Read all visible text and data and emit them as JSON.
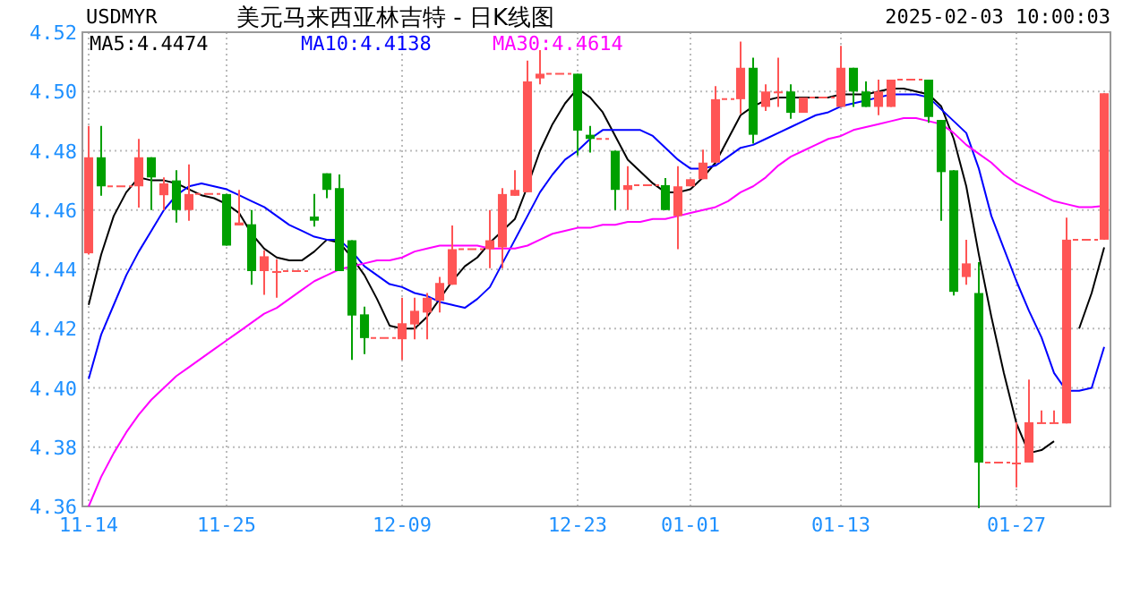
{
  "chart_data": {
    "type": "candlestick",
    "title": "美元马来西亚林吉特 - 日K线图",
    "subtitle": "USDMYR",
    "annotations": [
      "2025-02-03 10:00:03"
    ],
    "categories": [
      "11-14",
      null,
      null,
      null,
      null,
      null,
      null,
      null,
      null,
      null,
      null,
      "11-25",
      null,
      null,
      null,
      null,
      null,
      null,
      null,
      null,
      null,
      null,
      null,
      null,
      null,
      "12-09",
      null,
      null,
      null,
      null,
      null,
      null,
      null,
      null,
      null,
      null,
      null,
      null,
      null,
      "12-23",
      null,
      null,
      null,
      null,
      null,
      null,
      null,
      null,
      "01-01",
      null,
      null,
      null,
      null,
      null,
      null,
      null,
      null,
      null,
      null,
      null,
      "01-13",
      null,
      null,
      null,
      null,
      null,
      null,
      null,
      null,
      null,
      null,
      null,
      null,
      null,
      "01-27",
      null,
      null,
      null,
      null,
      null,
      null,
      null
    ],
    "ohlc": [
      [
        4.4454,
        4.4884,
        4.445,
        4.4778
      ],
      [
        4.4778,
        4.4884,
        4.4648,
        4.468
      ],
      [
        4.468,
        4.468,
        4.468,
        4.468
      ],
      [
        4.468,
        4.468,
        4.468,
        4.468
      ],
      [
        4.468,
        4.484,
        4.4608,
        4.4778
      ],
      [
        4.4778,
        4.4778,
        4.46,
        4.471
      ],
      [
        4.465,
        4.471,
        4.46,
        4.469
      ],
      [
        4.47,
        4.4734,
        4.4558,
        4.46
      ],
      [
        4.46,
        4.4754,
        4.4564,
        4.4654
      ],
      [
        4.4654,
        4.4654,
        4.4654,
        4.4654
      ],
      [
        4.4654,
        4.4654,
        4.4654,
        4.4654
      ],
      [
        4.4654,
        4.4654,
        4.448,
        4.448
      ],
      [
        4.4548,
        4.4668,
        4.4548,
        4.4558
      ],
      [
        4.4552,
        4.46,
        4.4348,
        4.4394
      ],
      [
        4.4394,
        4.4464,
        4.4314,
        4.4444
      ],
      [
        4.4394,
        4.4434,
        4.4304,
        4.4394
      ],
      [
        4.4394,
        4.4394,
        4.4394,
        4.4394
      ],
      [
        4.4394,
        4.4394,
        4.4394,
        4.4394
      ],
      [
        4.4578,
        4.4654,
        4.4544,
        4.4564
      ],
      [
        4.4724,
        4.4724,
        4.464,
        4.4668
      ],
      [
        4.4674,
        4.472,
        4.4394,
        4.4394
      ],
      [
        4.4498,
        4.4498,
        4.4094,
        4.4244
      ],
      [
        4.4248,
        4.4274,
        4.4114,
        4.4168
      ],
      [
        4.4168,
        4.4168,
        4.4168,
        4.4168
      ],
      [
        4.4168,
        4.4168,
        4.4168,
        4.4168
      ],
      [
        4.4164,
        4.4304,
        4.4094,
        4.4218
      ],
      [
        4.4214,
        4.4304,
        4.4164,
        4.426
      ],
      [
        4.4254,
        4.432,
        4.4164,
        4.4304
      ],
      [
        4.4294,
        4.4374,
        4.4254,
        4.4354
      ],
      [
        4.4348,
        4.4548,
        4.4348,
        4.4468
      ],
      [
        4.4468,
        4.4468,
        4.4468,
        4.4468
      ],
      [
        4.4468,
        4.4468,
        4.4468,
        4.4468
      ],
      [
        4.4468,
        4.46,
        4.4404,
        4.4498
      ],
      [
        4.4474,
        4.4674,
        4.4404,
        4.4654
      ],
      [
        4.4648,
        4.4734,
        4.4648,
        4.4668
      ],
      [
        4.466,
        4.5104,
        4.466,
        4.5034
      ],
      [
        4.5044,
        4.514,
        4.5024,
        4.506
      ],
      [
        4.506,
        4.506,
        4.506,
        4.506
      ],
      [
        4.506,
        4.506,
        4.506,
        4.506
      ],
      [
        4.506,
        4.506,
        4.4784,
        4.4868
      ],
      [
        4.4854,
        4.4884,
        4.4794,
        4.484
      ],
      [
        4.484,
        4.484,
        4.484,
        4.484
      ],
      [
        4.48,
        4.48,
        4.46,
        4.4668
      ],
      [
        4.4668,
        4.4748,
        4.46,
        4.4684
      ],
      [
        4.4684,
        4.4684,
        4.4684,
        4.4684
      ],
      [
        4.4684,
        4.4684,
        4.4684,
        4.4684
      ],
      [
        4.4684,
        4.4708,
        4.46,
        4.46
      ],
      [
        4.458,
        4.4748,
        4.4468,
        4.468
      ],
      [
        4.468,
        4.4704,
        4.468,
        4.4704
      ],
      [
        4.4704,
        4.4804,
        4.4704,
        4.476
      ],
      [
        4.476,
        4.5018,
        4.476,
        4.4974
      ],
      [
        4.4974,
        4.4974,
        4.4974,
        4.4974
      ],
      [
        4.4974,
        4.5168,
        4.4924,
        4.508
      ],
      [
        4.508,
        4.5114,
        4.4824,
        4.4854
      ],
      [
        4.4948,
        4.5024,
        4.4934,
        4.5
      ],
      [
        4.5,
        4.5114,
        4.4948,
        4.5
      ],
      [
        4.5,
        4.5024,
        4.4908,
        4.4928
      ],
      [
        4.4928,
        4.498,
        4.4928,
        4.498
      ],
      [
        4.498,
        4.498,
        4.498,
        4.498
      ],
      [
        4.498,
        4.498,
        4.498,
        4.498
      ],
      [
        4.4948,
        4.5154,
        4.4948,
        4.508
      ],
      [
        4.508,
        4.508,
        4.4948,
        4.5
      ],
      [
        4.5,
        4.5034,
        4.4948,
        4.4948
      ],
      [
        4.4948,
        4.504,
        4.492,
        4.5
      ],
      [
        4.4948,
        4.504,
        4.4948,
        4.504
      ],
      [
        4.504,
        4.504,
        4.504,
        4.504
      ],
      [
        4.504,
        4.504,
        4.504,
        4.504
      ],
      [
        4.504,
        4.504,
        4.4894,
        4.4914
      ],
      [
        4.4904,
        4.4904,
        4.4564,
        4.4728
      ],
      [
        4.4734,
        4.4734,
        4.4312,
        4.4324
      ],
      [
        4.4374,
        4.45,
        4.4348,
        4.442
      ],
      [
        4.432,
        4.4424,
        4.3594,
        4.3748
      ],
      [
        4.3748,
        4.3748,
        4.3748,
        4.3748
      ],
      [
        4.3748,
        4.3748,
        4.3748,
        4.3748
      ],
      [
        4.3748,
        4.3884,
        4.3664,
        4.3748
      ],
      [
        4.3748,
        4.4028,
        4.3748,
        4.3884
      ],
      [
        4.3884,
        4.3924,
        4.3884,
        4.3884
      ],
      [
        4.3884,
        4.3924,
        4.3884,
        4.3884
      ],
      [
        4.388,
        4.4574,
        4.388,
        4.45
      ],
      [
        4.45,
        4.45,
        4.45,
        4.45
      ],
      [
        4.45,
        4.45,
        4.45,
        4.45
      ],
      [
        4.45,
        4.4994,
        4.45,
        4.4994
      ]
    ],
    "colors": [
      "#ff5555",
      "#00a000",
      "#ff5555",
      "#ff5555",
      "#ff5555",
      "#00a000",
      "#ff5555",
      "#00a000",
      "#ff5555",
      "#ff5555",
      "#ff5555",
      "#00a000",
      "#ff5555",
      "#00a000",
      "#ff5555",
      "#ff5555",
      "#ff5555",
      "#ff5555",
      "#00a000",
      "#00a000",
      "#00a000",
      "#00a000",
      "#00a000",
      "#ff5555",
      "#ff5555",
      "#ff5555",
      "#ff5555",
      "#ff5555",
      "#ff5555",
      "#ff5555",
      "#ff5555",
      "#ff5555",
      "#ff5555",
      "#ff5555",
      "#ff5555",
      "#ff5555",
      "#ff5555",
      "#ff5555",
      "#ff5555",
      "#00a000",
      "#00a000",
      "#ff5555",
      "#00a000",
      "#ff5555",
      "#ff5555",
      "#ff5555",
      "#00a000",
      "#ff5555",
      "#ff5555",
      "#ff5555",
      "#ff5555",
      "#ff5555",
      "#ff5555",
      "#00a000",
      "#ff5555",
      "#ff5555",
      "#00a000",
      "#ff5555",
      "#ff5555",
      "#ff5555",
      "#ff5555",
      "#00a000",
      "#00a000",
      "#ff5555",
      "#ff5555",
      "#ff5555",
      "#ff5555",
      "#00a000",
      "#00a000",
      "#00a000",
      "#ff5555",
      "#00a000",
      "#ff5555",
      "#ff5555",
      "#ff5555",
      "#ff5555",
      "#ff5555",
      "#ff5555",
      "#ff5555",
      "#ff5555",
      "#ff5555",
      "#ff5555"
    ],
    "series": [
      {
        "name": "MA5:4.4474",
        "type": "line",
        "color": "#000000",
        "values": [
          4.428,
          4.445,
          4.458,
          4.466,
          4.471,
          4.47,
          4.47,
          4.469,
          4.467,
          4.465,
          4.464,
          4.462,
          4.459,
          4.452,
          4.447,
          4.444,
          4.443,
          4.443,
          4.446,
          4.45,
          4.449,
          4.444,
          4.438,
          4.43,
          4.421,
          4.42,
          4.42,
          4.424,
          4.43,
          4.436,
          4.441,
          4.444,
          4.449,
          4.453,
          4.457,
          4.468,
          4.48,
          4.489,
          4.496,
          4.501,
          4.498,
          4.493,
          4.485,
          4.477,
          4.473,
          4.469,
          4.466,
          4.466,
          4.467,
          4.471,
          4.476,
          4.484,
          4.492,
          4.495,
          4.497,
          4.498,
          4.498,
          4.498,
          4.498,
          4.498,
          4.499,
          4.499,
          4.499,
          4.5,
          4.501,
          4.501,
          4.5,
          4.499,
          4.495,
          4.484,
          4.468,
          4.445,
          4.424,
          4.405,
          4.388,
          4.378,
          4.379,
          4.382,
          null,
          4.42,
          4.432,
          4.4474
        ]
      },
      {
        "name": "MA10:4.4138",
        "type": "line",
        "color": "#0000ff",
        "values": [
          4.403,
          4.418,
          4.428,
          4.438,
          4.446,
          4.453,
          4.46,
          4.465,
          4.468,
          4.469,
          4.468,
          4.467,
          4.465,
          4.463,
          4.461,
          4.458,
          4.455,
          4.453,
          4.451,
          4.45,
          4.45,
          4.446,
          4.441,
          4.438,
          4.435,
          4.434,
          4.432,
          4.431,
          4.429,
          4.428,
          4.427,
          4.43,
          4.434,
          4.442,
          4.45,
          4.458,
          4.466,
          4.472,
          4.477,
          4.48,
          4.484,
          4.487,
          4.487,
          4.487,
          4.487,
          4.485,
          4.481,
          4.477,
          4.474,
          4.474,
          4.475,
          4.478,
          4.481,
          4.482,
          4.484,
          4.486,
          4.488,
          4.49,
          4.492,
          4.493,
          4.495,
          4.496,
          4.497,
          4.498,
          4.499,
          4.499,
          4.499,
          4.498,
          4.494,
          4.49,
          4.486,
          4.474,
          4.458,
          4.447,
          4.436,
          4.426,
          4.417,
          4.405,
          4.399,
          4.399,
          4.4,
          4.4138
        ]
      },
      {
        "name": "MA30:4.4614",
        "type": "line",
        "color": "#ff00ff",
        "values": [
          4.36,
          4.37,
          4.378,
          4.385,
          4.391,
          4.396,
          4.4,
          4.404,
          4.407,
          4.41,
          4.413,
          4.416,
          4.419,
          4.422,
          4.425,
          4.427,
          4.43,
          4.433,
          4.436,
          4.438,
          4.44,
          4.441,
          4.442,
          4.443,
          4.443,
          4.444,
          4.446,
          4.447,
          4.448,
          4.448,
          4.448,
          4.448,
          4.447,
          4.447,
          4.447,
          4.448,
          4.45,
          4.452,
          4.453,
          4.454,
          4.454,
          4.455,
          4.455,
          4.456,
          4.456,
          4.457,
          4.457,
          4.458,
          4.459,
          4.46,
          4.461,
          4.463,
          4.466,
          4.468,
          4.471,
          4.475,
          4.478,
          4.48,
          4.482,
          4.484,
          4.485,
          4.487,
          4.488,
          4.489,
          4.49,
          4.491,
          4.491,
          4.49,
          4.489,
          4.486,
          4.482,
          4.479,
          4.476,
          4.472,
          4.469,
          4.467,
          4.465,
          4.463,
          4.462,
          4.461,
          4.461,
          4.4614
        ]
      }
    ],
    "ylim": [
      4.36,
      4.52
    ],
    "yticks": [
      {
        "value": 4.36,
        "label": "4.36"
      },
      {
        "value": 4.38,
        "label": "4.38"
      },
      {
        "value": 4.4,
        "label": "4.40"
      },
      {
        "value": 4.42,
        "label": "4.42"
      },
      {
        "value": 4.44,
        "label": "4.44"
      },
      {
        "value": 4.46,
        "label": "4.46"
      },
      {
        "value": 4.48,
        "label": "4.48"
      },
      {
        "value": 4.5,
        "label": "4.50"
      },
      {
        "value": 4.52,
        "label": "4.52"
      }
    ],
    "grid": true,
    "legend": "top left"
  }
}
